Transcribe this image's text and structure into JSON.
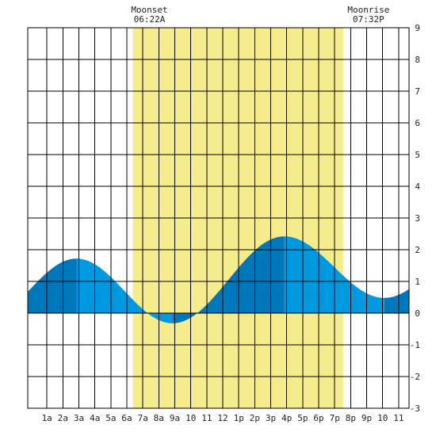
{
  "chart_data": {
    "type": "area",
    "title": "",
    "xlabel": "",
    "ylabel": "",
    "xlim": [
      -0.2,
      23.65
    ],
    "ylim": [
      -3,
      9
    ],
    "x_ticks": [
      {
        "x": 1,
        "label": "1a"
      },
      {
        "x": 2,
        "label": "2a"
      },
      {
        "x": 3,
        "label": "3a"
      },
      {
        "x": 4,
        "label": "4a"
      },
      {
        "x": 5,
        "label": "5a"
      },
      {
        "x": 6,
        "label": "6a"
      },
      {
        "x": 7,
        "label": "7a"
      },
      {
        "x": 8,
        "label": "8a"
      },
      {
        "x": 9,
        "label": "9a"
      },
      {
        "x": 10,
        "label": "10"
      },
      {
        "x": 11,
        "label": "11"
      },
      {
        "x": 12,
        "label": "12"
      },
      {
        "x": 13,
        "label": "1p"
      },
      {
        "x": 14,
        "label": "2p"
      },
      {
        "x": 15,
        "label": "3p"
      },
      {
        "x": 16,
        "label": "4p"
      },
      {
        "x": 17,
        "label": "5p"
      },
      {
        "x": 18,
        "label": "6p"
      },
      {
        "x": 19,
        "label": "7p"
      },
      {
        "x": 20,
        "label": "8p"
      },
      {
        "x": 21,
        "label": "9p"
      },
      {
        "x": 22,
        "label": "10"
      },
      {
        "x": 23,
        "label": "11"
      }
    ],
    "y_ticks": [
      -3,
      -2,
      -1,
      0,
      1,
      2,
      3,
      4,
      5,
      6,
      7,
      8,
      9
    ],
    "grid": true,
    "moon_window": {
      "start": 6.37,
      "end": 19.53
    },
    "annotations": [
      {
        "label": "Moonset",
        "time": "06:22A",
        "x": 6.37
      },
      {
        "label": "Moonrise",
        "time": "07:32P",
        "x": 19.53
      }
    ],
    "extremes": [
      {
        "x": 2.85,
        "y": 1.72,
        "type": "high"
      },
      {
        "x": 8.85,
        "y": -0.32,
        "type": "low"
      },
      {
        "x": 15.85,
        "y": 2.42,
        "type": "high"
      },
      {
        "x": 22.1,
        "y": 0.48,
        "type": "low"
      }
    ],
    "start_value": 1.02,
    "end_value": 0.82,
    "colors": {
      "moon_band": "#f5ec8e",
      "tide_light": "#0099e0",
      "tide_dark": "#0077bb",
      "grid": "#000000",
      "background": "#ffffff"
    }
  }
}
